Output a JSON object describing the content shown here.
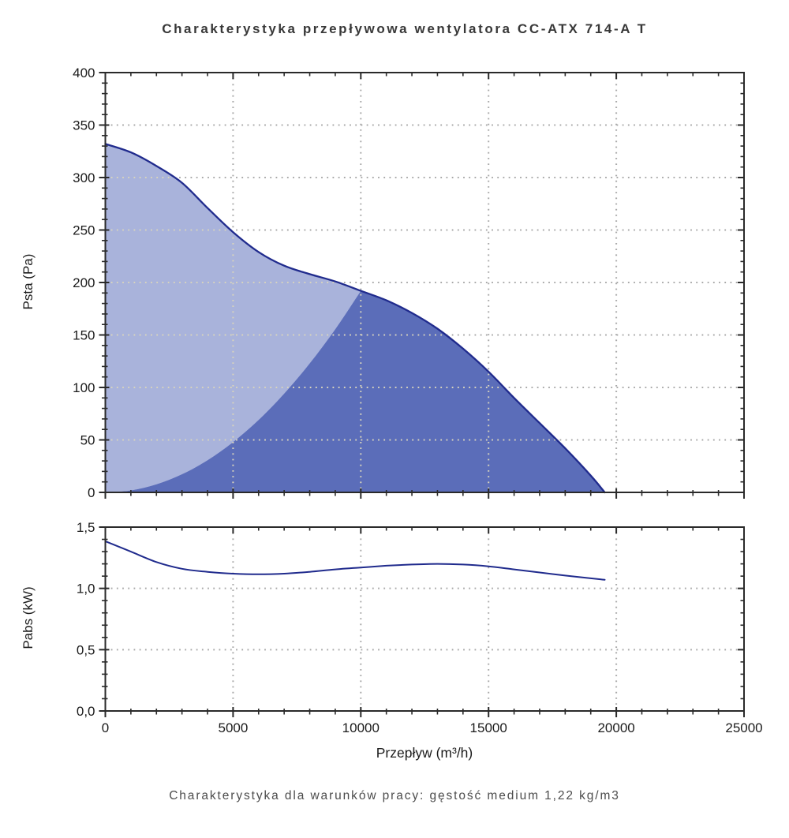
{
  "page": {
    "title": "Charakterystyka przepływowa wentylatora CC-ATX 714-A T",
    "caption": "Charakterystyka dla warunków pracy: gęstość medium 1,22 kg/m3"
  },
  "colors": {
    "curve": "#202b8d",
    "fill_light": "#a9b3db",
    "fill_dark": "#5b6db9",
    "grid_on_white": "#a9a9a9",
    "grid_on_fill": "#d8d4bd",
    "axis": "#2a2a2a",
    "text": "#1c1c1c"
  },
  "chart_data": [
    {
      "type": "area",
      "title": "",
      "xlabel": "",
      "ylabel": "Psta (Pa)",
      "xlim": [
        0,
        25000
      ],
      "ylim": [
        0,
        400
      ],
      "grid": "dotted",
      "legend": "none",
      "x_ticks": {
        "values": [
          0,
          5000,
          10000,
          15000,
          20000,
          25000
        ],
        "labels": [
          "0",
          "5000",
          "10000",
          "15000",
          "20000",
          "25000"
        ],
        "labels_shown": false,
        "minor_step": 1000
      },
      "y_ticks": {
        "values": [
          0,
          50,
          100,
          150,
          200,
          250,
          300,
          350,
          400
        ],
        "labels": [
          "0",
          "50",
          "100",
          "150",
          "200",
          "250",
          "300",
          "350",
          "400"
        ],
        "labels_shown": true,
        "minor_step": 10
      },
      "series": [
        {
          "name": "fan-pressure-curve",
          "points": [
            [
              0,
              332
            ],
            [
              1000,
              324
            ],
            [
              2000,
              311
            ],
            [
              3000,
              295
            ],
            [
              4000,
              271
            ],
            [
              5000,
              248
            ],
            [
              6000,
              229
            ],
            [
              7000,
              216
            ],
            [
              8000,
              208
            ],
            [
              9000,
              201
            ],
            [
              10000,
              192
            ],
            [
              11000,
              183
            ],
            [
              12000,
              171
            ],
            [
              13000,
              156
            ],
            [
              14000,
              137
            ],
            [
              15000,
              115
            ],
            [
              16000,
              90
            ],
            [
              17000,
              66
            ],
            [
              18000,
              42
            ],
            [
              19000,
              16
            ],
            [
              19550,
              0
            ]
          ]
        },
        {
          "name": "region-boundary-parabola",
          "points": [
            [
              0,
              0
            ],
            [
              1000,
              1.9
            ],
            [
              2000,
              7.7
            ],
            [
              3000,
              17.3
            ],
            [
              4000,
              30.7
            ],
            [
              5000,
              48
            ],
            [
              6000,
              69.1
            ],
            [
              7000,
              94.1
            ],
            [
              8000,
              122.9
            ],
            [
              9000,
              155.5
            ],
            [
              10000,
              192
            ]
          ]
        }
      ],
      "regions": [
        {
          "name": "area-left-of-boundary",
          "color": "#a9b3db"
        },
        {
          "name": "area-right-of-boundary",
          "color": "#5b6db9"
        }
      ],
      "intersection_point": [
        10000,
        192
      ]
    },
    {
      "type": "line",
      "title": "",
      "xlabel": "Przepływ (m³/h)",
      "ylabel": "Pabs (kW)",
      "xlim": [
        0,
        25000
      ],
      "ylim": [
        0,
        1.5
      ],
      "grid": "dotted",
      "legend": "none",
      "x_ticks": {
        "values": [
          0,
          5000,
          10000,
          15000,
          20000,
          25000
        ],
        "labels": [
          "0",
          "5000",
          "10000",
          "15000",
          "20000",
          "25000"
        ],
        "labels_shown": true,
        "minor_step": 1000
      },
      "y_ticks": {
        "values": [
          0,
          0.5,
          1.0,
          1.5
        ],
        "labels": [
          "0,0",
          "0,5",
          "1,0",
          "1,5"
        ],
        "labels_shown": true,
        "minor_step": 0.1
      },
      "series": [
        {
          "name": "absorbed-power-curve",
          "points": [
            [
              0,
              1.385
            ],
            [
              1000,
              1.3
            ],
            [
              2000,
              1.215
            ],
            [
              3000,
              1.16
            ],
            [
              4000,
              1.135
            ],
            [
              5000,
              1.12
            ],
            [
              6000,
              1.115
            ],
            [
              7000,
              1.12
            ],
            [
              8000,
              1.135
            ],
            [
              9000,
              1.155
            ],
            [
              10000,
              1.17
            ],
            [
              11000,
              1.185
            ],
            [
              12000,
              1.195
            ],
            [
              13000,
              1.2
            ],
            [
              14000,
              1.195
            ],
            [
              15000,
              1.18
            ],
            [
              16000,
              1.155
            ],
            [
              17000,
              1.13
            ],
            [
              18000,
              1.105
            ],
            [
              19000,
              1.082
            ],
            [
              19550,
              1.07
            ]
          ]
        }
      ]
    }
  ]
}
